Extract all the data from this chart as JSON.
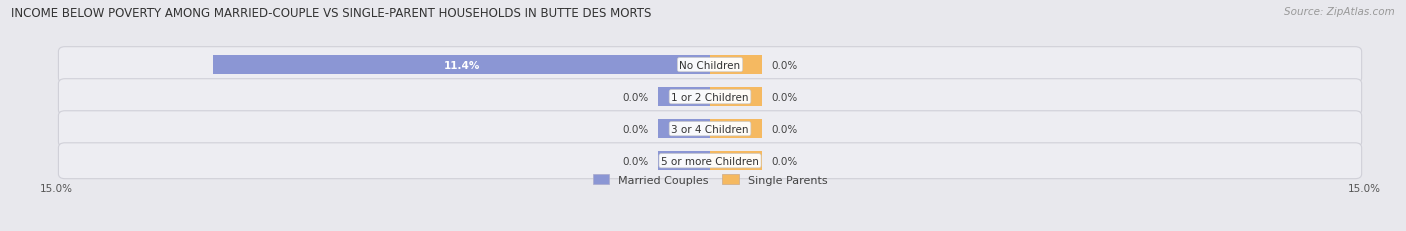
{
  "title": "INCOME BELOW POVERTY AMONG MARRIED-COUPLE VS SINGLE-PARENT HOUSEHOLDS IN BUTTE DES MORTS",
  "source": "Source: ZipAtlas.com",
  "categories": [
    "No Children",
    "1 or 2 Children",
    "3 or 4 Children",
    "5 or more Children"
  ],
  "married_values": [
    11.4,
    0.0,
    0.0,
    0.0
  ],
  "single_values": [
    0.0,
    0.0,
    0.0,
    0.0
  ],
  "married_color": "#8b96d4",
  "single_color": "#f5b961",
  "xlim_left": -15.0,
  "xlim_right": 15.0,
  "x_tick_left": "15.0%",
  "x_tick_right": "15.0%",
  "background_color": "#e8e8ed",
  "row_bg_color": "#ededf2",
  "row_edge_color": "#d0d0d8",
  "title_fontsize": 8.5,
  "source_fontsize": 7.5,
  "label_fontsize": 7.5,
  "category_fontsize": 7.5,
  "legend_fontsize": 8,
  "tick_fontsize": 7.5
}
